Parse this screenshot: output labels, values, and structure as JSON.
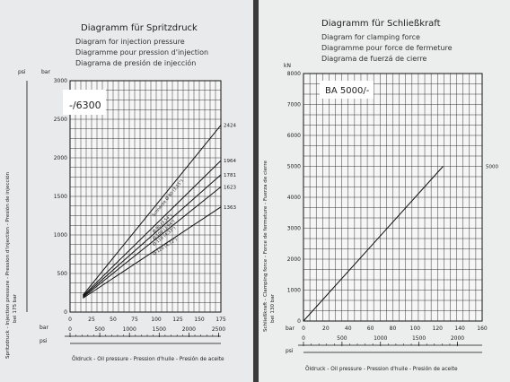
{
  "chart_data": [
    {
      "type": "line",
      "title": "Diagramm für Spritzdruck",
      "subtitles": [
        "Diagram for injection pressure",
        "Diagramme pour pression d'injection",
        "Diagrama de presión de injección"
      ],
      "model_label": "-/6300",
      "y_unit_left": "psi",
      "y_unit_right": "bar",
      "ylabel": "Spritzdruck - Injection pressure - Pression d'injection - Presión de injección",
      "ylabel2": "bei 175 bar",
      "xlabel": "Öldruck - Oil pressure - Pression d'huile - Presión de aceite",
      "x_unit_bar": "bar",
      "x_unit_psi": "psi",
      "xlim": [
        0,
        175
      ],
      "ylim": [
        0,
        3000
      ],
      "x_ticks": [
        0,
        25,
        50,
        75,
        100,
        125,
        150,
        175
      ],
      "y_ticks": [
        0,
        500,
        1000,
        1500,
        2000,
        2500,
        3000
      ],
      "psi_ticks": [
        0,
        500,
        1000,
        1500,
        2000,
        2500
      ],
      "series": [
        {
          "name": "Schnecke Ø 80 (3,15\")",
          "x": [
            15,
            175
          ],
          "y": [
            220,
            2424
          ],
          "end_label": "2424"
        },
        {
          "name": "Ø 90 (3,54\")",
          "x": [
            15,
            175
          ],
          "y": [
            210,
            1964
          ],
          "end_label": "1964"
        },
        {
          "name": "Ø 100 (3,94\")",
          "x": [
            15,
            175
          ],
          "y": [
            200,
            1781
          ],
          "end_label": "1781"
        },
        {
          "name": "Ø 110 (4,33\")",
          "x": [
            15,
            175
          ],
          "y": [
            190,
            1623
          ],
          "end_label": "1623"
        },
        {
          "name": "Ø 120 (4,72\")",
          "x": [
            15,
            175
          ],
          "y": [
            180,
            1363
          ],
          "end_label": "1363"
        }
      ]
    },
    {
      "type": "line",
      "title": "Diagramm für Schließkraft",
      "subtitles": [
        "Diagram for clamping force",
        "Diagramme pour force de fermeture",
        "Diagrama de fuerzá de cierre"
      ],
      "model_label": "BA 5000/-",
      "y_unit_right": "kN",
      "ylabel": "Schließkraft - Clamping force - Force de fermeture - Fuerza de cierre",
      "ylabel2": "bei 130 bar",
      "xlabel": "Öldruck - Oil pressure - Pression d'huile - Presión de aceite",
      "x_unit_bar": "bar",
      "x_unit_psi": "psi",
      "xlim": [
        0,
        160
      ],
      "ylim": [
        0,
        8000
      ],
      "x_ticks": [
        0,
        20,
        40,
        60,
        80,
        100,
        120,
        140,
        160
      ],
      "y_ticks": [
        0,
        1000,
        2000,
        3000,
        4000,
        5000,
        6000,
        7000,
        8000
      ],
      "psi_ticks": [
        0,
        500,
        1000,
        1500,
        2000
      ],
      "series": [
        {
          "name": "BA 5000",
          "x": [
            0,
            125
          ],
          "y": [
            0,
            5000
          ],
          "end_label": "5000"
        }
      ]
    }
  ]
}
